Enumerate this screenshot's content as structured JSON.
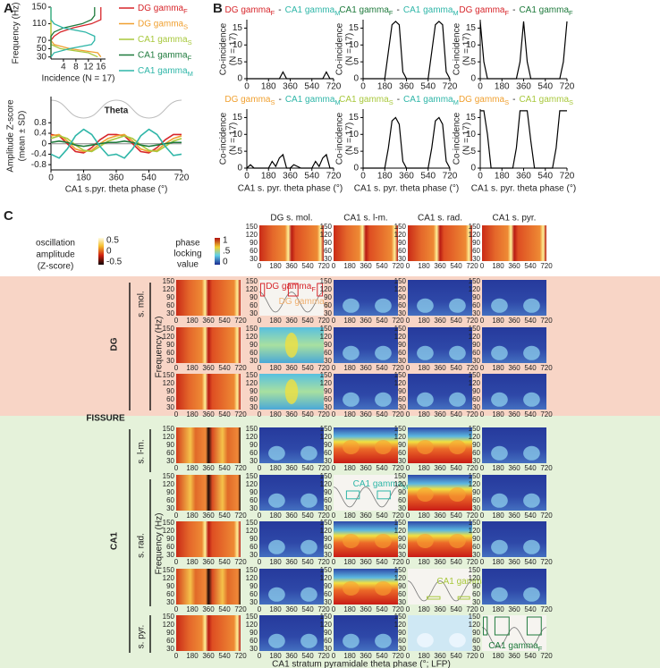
{
  "panel_labels": {
    "a": "A",
    "b": "B",
    "c": "C"
  },
  "chart_data": [
    {
      "type": "line",
      "orientation": "horizontal",
      "ylabel": "Frequency (Hz)",
      "xlabel": "Incidence (N = 17)",
      "y": [
        30,
        40,
        50,
        60,
        70,
        80,
        90,
        100,
        110,
        120,
        130,
        140,
        150
      ],
      "xlim": [
        0,
        17.5
      ],
      "xticks": [
        4,
        8,
        12,
        16
      ],
      "ylim": [
        25,
        150
      ],
      "yticks": [
        30,
        50,
        70,
        110,
        150
      ],
      "series": [
        {
          "name": "DG gamma",
          "sub": "F",
          "color": "#d7262b",
          "values": [
            0,
            0,
            0,
            0,
            0,
            1,
            3,
            7,
            13,
            16,
            16,
            16,
            16
          ]
        },
        {
          "name": "DG gamma",
          "sub": "S",
          "color": "#f0a030",
          "values": [
            16,
            15,
            6,
            1,
            0,
            0,
            0,
            0,
            0,
            0,
            0,
            0,
            0
          ]
        },
        {
          "name": "CA1 gamma",
          "sub": "S",
          "color": "#a8c83c",
          "values": [
            15,
            12,
            3,
            0,
            0,
            0,
            0,
            0,
            0,
            0,
            0,
            0,
            0
          ]
        },
        {
          "name": "CA1 gamma",
          "sub": "F",
          "color": "#1e7a3c",
          "values": [
            0,
            0,
            0,
            0,
            0,
            0,
            1,
            4,
            10,
            13,
            14,
            14,
            14
          ]
        },
        {
          "name": "CA1 gamma",
          "sub": "M",
          "color": "#2fb6a8",
          "values": [
            0,
            1,
            6,
            13,
            14,
            14,
            11,
            4,
            1,
            0,
            0,
            0,
            0
          ]
        }
      ]
    },
    {
      "type": "line",
      "ylabel": "Amplitude Z-score",
      "ylabel2": "(mean ± SD)",
      "xlabel": "CA1 s.pyr. theta phase (°)",
      "theta_label": "Theta",
      "x": [
        0,
        45,
        90,
        135,
        180,
        225,
        270,
        315,
        360,
        405,
        450,
        495,
        540,
        585,
        630,
        675,
        720
      ],
      "xlim": [
        0,
        720
      ],
      "xticks": [
        0,
        180,
        360,
        540,
        720
      ],
      "ylim": [
        -1,
        1.8
      ],
      "yticks": [
        -0.8,
        -0.4,
        0,
        0.4,
        0.8
      ],
      "series": [
        {
          "color": "#d7262b",
          "values": [
            0.35,
            0.3,
            0,
            -0.3,
            -0.35,
            -0.15,
            0.15,
            0.35,
            0.35,
            0.3,
            0,
            -0.3,
            -0.35,
            -0.15,
            0.15,
            0.35,
            0.35
          ]
        },
        {
          "color": "#f0a030",
          "values": [
            0.3,
            0.35,
            0.1,
            -0.2,
            -0.3,
            -0.25,
            0,
            0.2,
            0.3,
            0.35,
            0.1,
            -0.2,
            -0.3,
            -0.25,
            0,
            0.2,
            0.3
          ]
        },
        {
          "color": "#a8c83c",
          "values": [
            0.2,
            0.3,
            0.2,
            -0.05,
            -0.25,
            -0.3,
            -0.1,
            0.1,
            0.2,
            0.3,
            0.2,
            -0.05,
            -0.25,
            -0.3,
            -0.1,
            0.1,
            0.2
          ]
        },
        {
          "color": "#1e7a3c",
          "values": [
            0.05,
            0.1,
            0.05,
            -0.05,
            -0.1,
            -0.05,
            0,
            0.05,
            0.05,
            0.1,
            0.05,
            -0.05,
            -0.1,
            -0.05,
            0,
            0.05,
            0.05
          ]
        },
        {
          "color": "#2fb6a8",
          "values": [
            -0.4,
            -0.55,
            -0.2,
            0.3,
            0.55,
            0.35,
            -0.1,
            -0.45,
            -0.4,
            -0.55,
            -0.2,
            0.3,
            0.55,
            0.35,
            -0.1,
            -0.45,
            -0.4
          ]
        }
      ]
    },
    {
      "type": "line",
      "title": [
        {
          "text": "DG gamma",
          "sub": "F",
          "color": "#d7262b"
        },
        {
          "text": "CA1 gamma",
          "sub": "M",
          "color": "#2fb6a8"
        }
      ],
      "title_separator": "-",
      "ylabel": "Co-incidence",
      "ylabel2": "(N = 17)",
      "color": "#000000",
      "x": [
        0,
        30,
        60,
        90,
        120,
        150,
        180,
        210,
        240,
        270,
        300,
        330,
        360,
        390,
        420,
        450,
        480,
        510,
        540,
        570,
        600,
        630,
        660,
        690,
        720
      ],
      "xlim": [
        0,
        720
      ],
      "xticks": [
        0,
        180,
        360,
        540,
        720
      ],
      "ylim": [
        0,
        17.5
      ],
      "yticks": [
        0,
        5,
        10,
        15
      ],
      "values": [
        0,
        0,
        0,
        0,
        0,
        0,
        0,
        0,
        0,
        0,
        2,
        0,
        0,
        0,
        0,
        0,
        0,
        0,
        0,
        0,
        0,
        0,
        2,
        0,
        0
      ]
    },
    {
      "type": "line",
      "title": [
        {
          "text": "CA1 gamma",
          "sub": "F",
          "color": "#1e7a3c"
        },
        {
          "text": "CA1 gamma",
          "sub": "M",
          "color": "#2fb6a8"
        }
      ],
      "title_separator": "-",
      "ylabel": "Co-incidence",
      "ylabel2": "(N = 17)",
      "color": "#000000",
      "x": [
        0,
        30,
        60,
        90,
        120,
        150,
        180,
        210,
        240,
        270,
        300,
        330,
        360,
        390,
        420,
        450,
        480,
        510,
        540,
        570,
        600,
        630,
        660,
        690,
        720
      ],
      "xlim": [
        0,
        720
      ],
      "xticks": [
        0,
        180,
        360,
        540,
        720
      ],
      "ylim": [
        0,
        17.5
      ],
      "yticks": [
        0,
        5,
        10,
        15
      ],
      "values": [
        0,
        0,
        0,
        0,
        0,
        0,
        0,
        8,
        16,
        17,
        16,
        2,
        0,
        0,
        0,
        0,
        0,
        0,
        0,
        8,
        16,
        17,
        16,
        2,
        0
      ]
    },
    {
      "type": "line",
      "title": [
        {
          "text": "DG gamma",
          "sub": "F",
          "color": "#d7262b"
        },
        {
          "text": "CA1 gamma",
          "sub": "F",
          "color": "#1e7a3c"
        }
      ],
      "title_separator": "-",
      "ylabel": "Co-incidence",
      "ylabel2": "(N = 17)",
      "color": "#000000",
      "x": [
        0,
        30,
        60,
        90,
        120,
        150,
        180,
        210,
        240,
        270,
        300,
        330,
        360,
        390,
        420,
        450,
        480,
        510,
        540,
        570,
        600,
        630,
        660,
        690,
        720
      ],
      "xlim": [
        0,
        720
      ],
      "xticks": [
        0,
        180,
        360,
        540,
        720
      ],
      "ylim": [
        0,
        17.5
      ],
      "yticks": [
        0,
        5,
        10,
        15
      ],
      "values": [
        17,
        5,
        0,
        0,
        0,
        0,
        0,
        0,
        0,
        0,
        0,
        5,
        17,
        5,
        0,
        0,
        0,
        0,
        0,
        0,
        0,
        0,
        0,
        5,
        17
      ]
    },
    {
      "type": "line",
      "title": [
        {
          "text": "DG gamma",
          "sub": "S",
          "color": "#f0a030"
        },
        {
          "text": "CA1 gamma",
          "sub": "M",
          "color": "#2fb6a8"
        }
      ],
      "title_separator": "-",
      "ylabel": "Co-incidence",
      "ylabel2": "(N = 17)",
      "xlabel": "CA1 s. pyr. theta phase (°)",
      "color": "#000000",
      "x": [
        0,
        30,
        60,
        90,
        120,
        150,
        180,
        210,
        240,
        270,
        300,
        330,
        360,
        390,
        420,
        450,
        480,
        510,
        540,
        570,
        600,
        630,
        660,
        690,
        720
      ],
      "xlim": [
        0,
        720
      ],
      "xticks": [
        0,
        180,
        360,
        540,
        720
      ],
      "ylim": [
        0,
        17.5
      ],
      "yticks": [
        0,
        5,
        10,
        15
      ],
      "values": [
        0,
        1,
        0,
        0,
        0,
        0,
        0,
        2,
        0.5,
        3,
        4,
        0,
        0,
        1,
        0.5,
        0,
        0,
        0,
        0,
        2,
        0.5,
        3,
        4,
        0,
        0
      ]
    },
    {
      "type": "line",
      "title": [
        {
          "text": "CA1 gamma",
          "sub": "S",
          "color": "#a8c83c"
        },
        {
          "text": "CA1 gamma",
          "sub": "M",
          "color": "#2fb6a8"
        }
      ],
      "title_separator": "-",
      "ylabel": "Co-incidence",
      "ylabel2": "(N = 17)",
      "xlabel": "CA1 s. pyr. theta phase (°)",
      "color": "#000000",
      "x": [
        0,
        30,
        60,
        90,
        120,
        150,
        180,
        210,
        240,
        270,
        300,
        330,
        360,
        390,
        420,
        450,
        480,
        510,
        540,
        570,
        600,
        630,
        660,
        690,
        720
      ],
      "xlim": [
        0,
        720
      ],
      "xticks": [
        0,
        180,
        360,
        540,
        720
      ],
      "ylim": [
        0,
        17.5
      ],
      "yticks": [
        0,
        5,
        10,
        15
      ],
      "values": [
        0,
        0,
        0,
        0,
        0,
        0,
        0,
        6,
        14,
        15,
        13,
        2,
        0,
        0,
        0,
        0,
        0,
        0,
        0,
        6,
        14,
        15,
        13,
        2,
        0
      ]
    },
    {
      "type": "line",
      "title": [
        {
          "text": "DG gamma",
          "sub": "S",
          "color": "#f0a030"
        },
        {
          "text": "CA1 gamma",
          "sub": "S",
          "color": "#a8c83c"
        }
      ],
      "title_separator": "-",
      "ylabel": "Co-incidence",
      "ylabel2": "(N = 17)",
      "xlabel": "CA1 s. pyr. theta phase (°)",
      "color": "#000000",
      "x": [
        0,
        30,
        60,
        90,
        120,
        150,
        180,
        210,
        240,
        270,
        300,
        330,
        360,
        390,
        420,
        450,
        480,
        510,
        540,
        570,
        600,
        630,
        660,
        690,
        720
      ],
      "xlim": [
        0,
        720
      ],
      "xticks": [
        0,
        180,
        360,
        540,
        720
      ],
      "ylim": [
        0,
        17.5
      ],
      "yticks": [
        0,
        5,
        10,
        15
      ],
      "values": [
        17,
        17,
        10,
        0,
        0,
        0,
        0,
        0,
        0,
        0,
        6,
        17,
        17,
        17,
        8,
        0,
        0,
        0,
        0,
        0,
        0,
        6,
        17,
        17,
        17
      ]
    }
  ],
  "panel_c": {
    "columns": [
      "DG s. mol.",
      "CA1 s. l-m.",
      "CA1 s. rad.",
      "CA1 s. pyr."
    ],
    "heatmap_xticks": [
      0,
      180,
      360,
      540,
      720
    ],
    "heatmap_yticks": [
      30,
      60,
      90,
      120,
      150
    ],
    "amplitude_colorbar": {
      "label": [
        "oscillation",
        "amplitude",
        "(Z-score)"
      ],
      "ticks": [
        "0.5",
        "0",
        "-0.5"
      ]
    },
    "plv_colorbar": {
      "label": [
        "phase",
        "locking",
        "value"
      ],
      "ticks": [
        "1",
        ".5",
        "0"
      ]
    },
    "groups": {
      "dg": "DG",
      "ca1": "CA1",
      "fissure": "FISSURE"
    },
    "rows": [
      "s. mol.",
      "s. l-m.",
      "s. rad.",
      "s. pyr."
    ],
    "frequency_label": "Frequency (Hz)",
    "xlabel": "CA1 stratum pyramidale theta phase (°; LFP)",
    "overlays": [
      {
        "text": "DG gamma",
        "sub": "F"
      },
      {
        "text": "CA1 gamma",
        "sub": "M"
      },
      {
        "text": "CA1 gamma",
        "sub": "S"
      },
      {
        "text": "CA1 gamma",
        "sub": "F"
      },
      {
        "text": "DG gamma",
        "sub": "S"
      }
    ]
  }
}
